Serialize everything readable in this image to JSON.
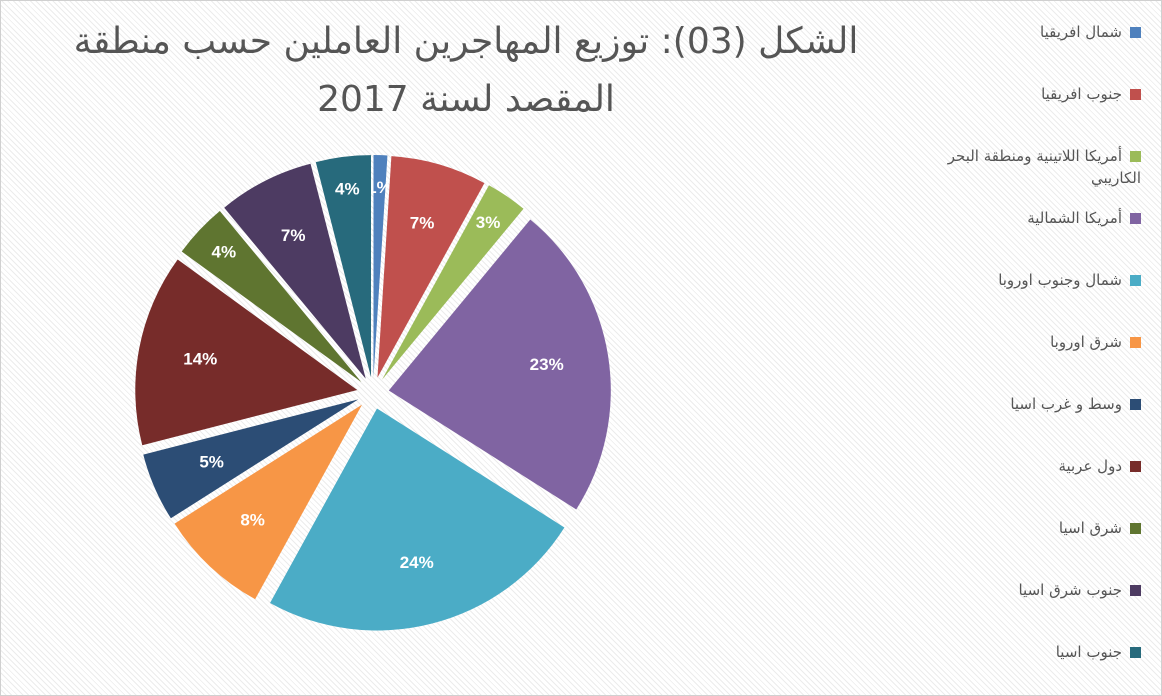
{
  "chart_data": {
    "type": "pie",
    "title": "الشكل (03): توزيع المهاجرين العاملين حسب منطقة المقصد لسنة 2017",
    "categories": [
      "شمال افريقيا",
      "جنوب افريقيا",
      "أمريكا اللاتينية ومنطقة البحر الكاريبي",
      "أمريكا الشمالية",
      "شمال وجنوب اوروبا",
      "شرق اوروبا",
      "وسط و غرب اسيا",
      "دول عربية",
      "شرق اسيا",
      "جنوب شرق اسيا",
      "جنوب اسيا"
    ],
    "values": [
      1,
      7,
      3,
      23,
      24,
      8,
      5,
      14,
      4,
      7,
      4
    ],
    "value_labels": [
      "1%",
      "7%",
      "3%",
      "23%",
      "24%",
      "8%",
      "5%",
      "14%",
      "4%",
      "7%",
      "4%"
    ],
    "colors": [
      "#4f81bd",
      "#c0504d",
      "#9bbb59",
      "#8064a2",
      "#4bacc6",
      "#f79646",
      "#2c4d75",
      "#772c2a",
      "#5f7530",
      "#4d3b62",
      "#276a7c"
    ],
    "legend": "right"
  }
}
